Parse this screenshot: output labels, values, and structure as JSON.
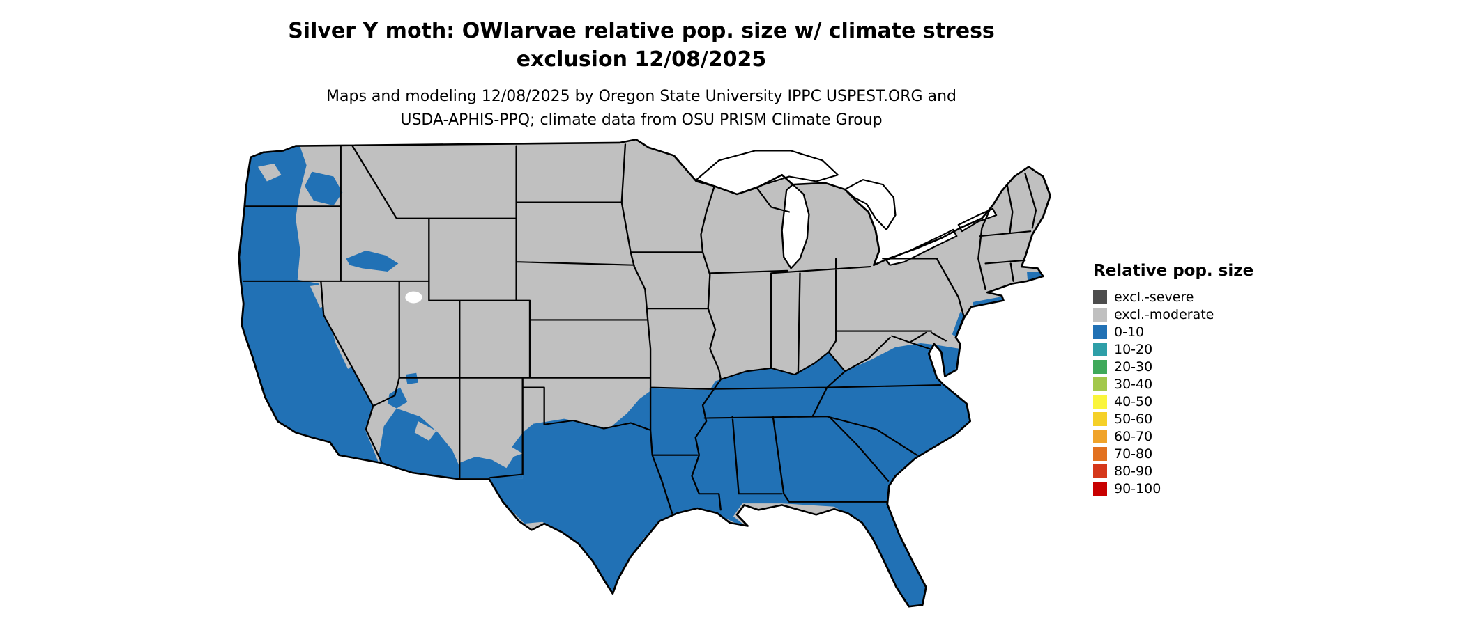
{
  "title": {
    "line1": "Silver Y moth: OWlarvae relative pop. size w/ climate stress",
    "line2": "exclusion 12/08/2025"
  },
  "subtitle": {
    "line1": "Maps and modeling 12/08/2025 by Oregon State University IPPC USPEST.ORG and",
    "line2": "USDA-APHIS-PPQ; climate data from OSU PRISM Climate Group"
  },
  "legend": {
    "title": "Relative pop. size",
    "entries": [
      {
        "label": "excl.-severe",
        "color": "#4D4D4D"
      },
      {
        "label": "excl.-moderate",
        "color": "#C0C0C0"
      },
      {
        "label": "0-10",
        "color": "#2171B5"
      },
      {
        "label": "10-20",
        "color": "#2E9FA8"
      },
      {
        "label": "20-30",
        "color": "#3FA95A"
      },
      {
        "label": "30-40",
        "color": "#A2C84B"
      },
      {
        "label": "40-50",
        "color": "#FAF53C"
      },
      {
        "label": "50-60",
        "color": "#F5D028"
      },
      {
        "label": "60-70",
        "color": "#F0A32A"
      },
      {
        "label": "70-80",
        "color": "#E2711F"
      },
      {
        "label": "80-90",
        "color": "#D5371A"
      },
      {
        "label": "90-100",
        "color": "#C80000"
      }
    ]
  },
  "map": {
    "colors": {
      "excluded_moderate": "#C0C0C0",
      "excluded_severe": "#4D4D4D",
      "pop_0_10": "#2171B5",
      "border": "#000000",
      "water": "#FFFFFF"
    }
  }
}
